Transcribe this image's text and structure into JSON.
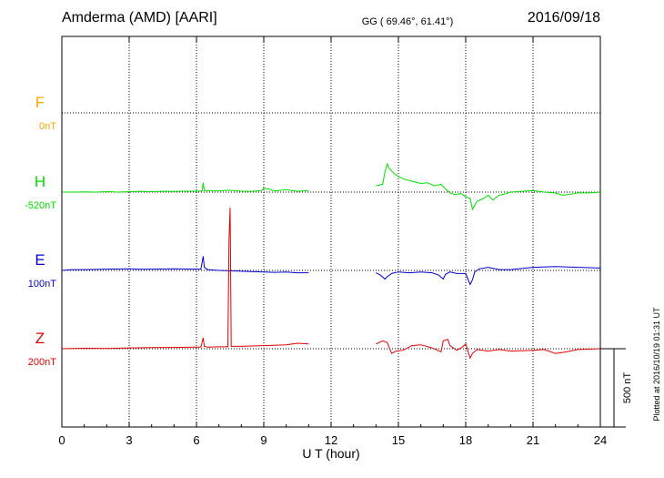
{
  "header": {
    "station": "Amderma (AMD)  [AARI]",
    "coords": "GG ( 69.46°,  61.41°)",
    "date": "2016/09/18"
  },
  "plotted_note": "Plotted at 2016/10/19 01:31  UT",
  "scale_label": "500 nT",
  "colors": {
    "F": "#ffa500",
    "H": "#00e000",
    "E": "#0000cc",
    "Z": "#e00000",
    "frame": "#000000",
    "grid": "#000000"
  },
  "chart_data": {
    "type": "line",
    "xlabel": "U T (hour)",
    "xlim": [
      0,
      24
    ],
    "xticks": [
      0,
      3,
      6,
      9,
      12,
      15,
      18,
      21,
      24
    ],
    "xtick_labels": [
      "0",
      "3",
      "6",
      "9",
      "12",
      "15",
      "18",
      "21",
      "24"
    ],
    "scale_bar_nT": 500,
    "series": [
      {
        "name": "F",
        "baseline_label": "0nT",
        "points": []
      },
      {
        "name": "H",
        "baseline_label": "-520nT",
        "points": [
          [
            0,
            0
          ],
          [
            0.5,
            0
          ],
          [
            1,
            2
          ],
          [
            1.5,
            0
          ],
          [
            2,
            3
          ],
          [
            2.5,
            0
          ],
          [
            3,
            3
          ],
          [
            3.5,
            5
          ],
          [
            4,
            3
          ],
          [
            4.5,
            5
          ],
          [
            5,
            4
          ],
          [
            5.5,
            6
          ],
          [
            6,
            6
          ],
          [
            6.25,
            8
          ],
          [
            6.3,
            60
          ],
          [
            6.35,
            10
          ],
          [
            6.6,
            8
          ],
          [
            7,
            8
          ],
          [
            7.5,
            12
          ],
          [
            8,
            6
          ],
          [
            8.5,
            5
          ],
          [
            8.9,
            10
          ],
          [
            9,
            25
          ],
          [
            9.2,
            20
          ],
          [
            9.5,
            8
          ],
          [
            10,
            15
          ],
          [
            10.5,
            5
          ],
          [
            11,
            10
          ],
          [
            14,
            40
          ],
          [
            14.3,
            50
          ],
          [
            14.4,
            130
          ],
          [
            14.5,
            180
          ],
          [
            14.6,
            150
          ],
          [
            14.8,
            120
          ],
          [
            15,
            100
          ],
          [
            15.3,
            80
          ],
          [
            15.6,
            70
          ],
          [
            16,
            55
          ],
          [
            16.3,
            60
          ],
          [
            16.6,
            40
          ],
          [
            16.9,
            50
          ],
          [
            17.1,
            20
          ],
          [
            17.3,
            -5
          ],
          [
            17.5,
            -15
          ],
          [
            17.8,
            -10
          ],
          [
            18,
            -30
          ],
          [
            18.2,
            -40
          ],
          [
            18.3,
            -110
          ],
          [
            18.5,
            -60
          ],
          [
            18.8,
            -40
          ],
          [
            19,
            -20
          ],
          [
            19.2,
            -50
          ],
          [
            19.5,
            -20
          ],
          [
            19.8,
            -10
          ],
          [
            20,
            0
          ],
          [
            20.5,
            5
          ],
          [
            21,
            10
          ],
          [
            21.5,
            0
          ],
          [
            22,
            -5
          ],
          [
            22.3,
            -20
          ],
          [
            22.6,
            -15
          ],
          [
            23,
            -5
          ],
          [
            23.5,
            -5
          ],
          [
            24,
            0
          ]
        ]
      },
      {
        "name": "E",
        "baseline_label": "100nT",
        "points": [
          [
            0,
            0
          ],
          [
            0.5,
            5
          ],
          [
            1,
            5
          ],
          [
            2,
            8
          ],
          [
            3,
            10
          ],
          [
            3.5,
            7
          ],
          [
            4,
            8
          ],
          [
            5,
            10
          ],
          [
            6,
            8
          ],
          [
            6.2,
            8
          ],
          [
            6.3,
            90
          ],
          [
            6.35,
            20
          ],
          [
            6.5,
            5
          ],
          [
            7,
            0
          ],
          [
            8,
            -5
          ],
          [
            9,
            -10
          ],
          [
            9.5,
            -12
          ],
          [
            10,
            -10
          ],
          [
            10.5,
            -15
          ],
          [
            11,
            -15
          ],
          [
            14,
            -15
          ],
          [
            14.2,
            -30
          ],
          [
            14.4,
            -55
          ],
          [
            14.5,
            -40
          ],
          [
            14.7,
            -20
          ],
          [
            15,
            -10
          ],
          [
            15.5,
            -15
          ],
          [
            16,
            -10
          ],
          [
            16.5,
            -15
          ],
          [
            16.8,
            -30
          ],
          [
            17,
            -55
          ],
          [
            17.1,
            -25
          ],
          [
            17.3,
            -10
          ],
          [
            17.6,
            -20
          ],
          [
            18,
            -20
          ],
          [
            18.2,
            -90
          ],
          [
            18.3,
            -60
          ],
          [
            18.4,
            -10
          ],
          [
            18.6,
            10
          ],
          [
            19,
            20
          ],
          [
            19.5,
            5
          ],
          [
            20,
            5
          ],
          [
            21,
            20
          ],
          [
            22,
            25
          ],
          [
            23,
            20
          ],
          [
            24,
            15
          ]
        ]
      },
      {
        "name": "Z",
        "baseline_label": "200nT",
        "points": [
          [
            0,
            0
          ],
          [
            1,
            3
          ],
          [
            2,
            2
          ],
          [
            3,
            5
          ],
          [
            4,
            7
          ],
          [
            5,
            8
          ],
          [
            6,
            10
          ],
          [
            6.2,
            10
          ],
          [
            6.3,
            70
          ],
          [
            6.35,
            15
          ],
          [
            6.5,
            10
          ],
          [
            7,
            12
          ],
          [
            7.4,
            12
          ],
          [
            7.45,
            700
          ],
          [
            7.5,
            900
          ],
          [
            7.55,
            15
          ],
          [
            8,
            15
          ],
          [
            9,
            20
          ],
          [
            10,
            25
          ],
          [
            10.5,
            35
          ],
          [
            11,
            30
          ],
          [
            14,
            30
          ],
          [
            14.3,
            50
          ],
          [
            14.5,
            40
          ],
          [
            14.7,
            -30
          ],
          [
            14.9,
            -15
          ],
          [
            15.2,
            -10
          ],
          [
            15.6,
            20
          ],
          [
            16,
            25
          ],
          [
            16.5,
            5
          ],
          [
            16.9,
            -20
          ],
          [
            17,
            50
          ],
          [
            17.2,
            60
          ],
          [
            17.3,
            20
          ],
          [
            17.6,
            -10
          ],
          [
            17.8,
            5
          ],
          [
            18,
            30
          ],
          [
            18.2,
            -60
          ],
          [
            18.3,
            -30
          ],
          [
            18.5,
            -5
          ],
          [
            19,
            -15
          ],
          [
            19.5,
            -5
          ],
          [
            20,
            -15
          ],
          [
            21,
            -10
          ],
          [
            21.5,
            -5
          ],
          [
            22,
            -30
          ],
          [
            22.5,
            -20
          ],
          [
            23,
            -5
          ],
          [
            24,
            0
          ]
        ]
      }
    ]
  }
}
